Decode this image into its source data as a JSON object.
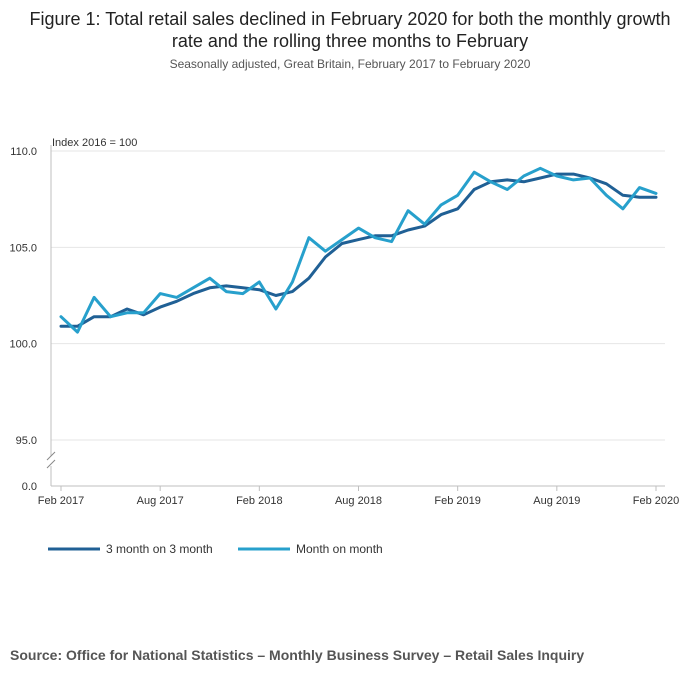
{
  "title": "Figure 1: Total retail sales declined in February 2020 for both the monthly growth rate and the rolling three months to February",
  "subtitle": "Seasonally adjusted, Great Britain, February 2017 to February 2020",
  "source": "Source: Office for National Statistics – Monthly Business Survey – Retail Sales Inquiry",
  "chart_data": {
    "type": "line",
    "ylabel": "Index 2016 = 100",
    "ylim": [
      95,
      110
    ],
    "y_ticks": [
      "110.0",
      "105.0",
      "100.0",
      "95.0"
    ],
    "y_tick_values": [
      110,
      105,
      100,
      95
    ],
    "y_break_label": "0.0",
    "x_tick_labels": [
      "Feb 2017",
      "Aug 2017",
      "Feb 2018",
      "Aug 2018",
      "Feb 2019",
      "Aug 2019",
      "Feb 2020"
    ],
    "x_tick_indices": [
      0,
      6,
      12,
      18,
      24,
      30,
      36
    ],
    "x": [
      "Feb 2017",
      "Mar 2017",
      "Apr 2017",
      "May 2017",
      "Jun 2017",
      "Jul 2017",
      "Aug 2017",
      "Sep 2017",
      "Oct 2017",
      "Nov 2017",
      "Dec 2017",
      "Jan 2018",
      "Feb 2018",
      "Mar 2018",
      "Apr 2018",
      "May 2018",
      "Jun 2018",
      "Jul 2018",
      "Aug 2018",
      "Sep 2018",
      "Oct 2018",
      "Nov 2018",
      "Dec 2018",
      "Jan 2019",
      "Feb 2019",
      "Mar 2019",
      "Apr 2019",
      "May 2019",
      "Jun 2019",
      "Jul 2019",
      "Aug 2019",
      "Sep 2019",
      "Oct 2019",
      "Nov 2019",
      "Dec 2019",
      "Jan 2020",
      "Feb 2020"
    ],
    "series": [
      {
        "name": "3 month on 3 month",
        "color": "#206095",
        "values": [
          100.9,
          100.9,
          101.4,
          101.4,
          101.8,
          101.5,
          101.9,
          102.2,
          102.6,
          102.9,
          103.0,
          102.9,
          102.8,
          102.5,
          102.7,
          103.4,
          104.5,
          105.2,
          105.4,
          105.6,
          105.6,
          105.9,
          106.1,
          106.7,
          107.0,
          108.0,
          108.4,
          108.5,
          108.4,
          108.6,
          108.8,
          108.8,
          108.6,
          108.3,
          107.7,
          107.6,
          107.6
        ]
      },
      {
        "name": "Month on month",
        "color": "#27A0CC",
        "values": [
          101.4,
          100.6,
          102.4,
          101.4,
          101.6,
          101.6,
          102.6,
          102.4,
          102.9,
          103.4,
          102.7,
          102.6,
          103.2,
          101.8,
          103.2,
          105.5,
          104.8,
          105.4,
          106.0,
          105.5,
          105.3,
          106.9,
          106.2,
          107.2,
          107.7,
          108.9,
          108.4,
          108.0,
          108.7,
          109.1,
          108.7,
          108.5,
          108.6,
          107.7,
          107.0,
          108.1,
          107.8
        ]
      }
    ],
    "legend_position": "bottom-left"
  }
}
